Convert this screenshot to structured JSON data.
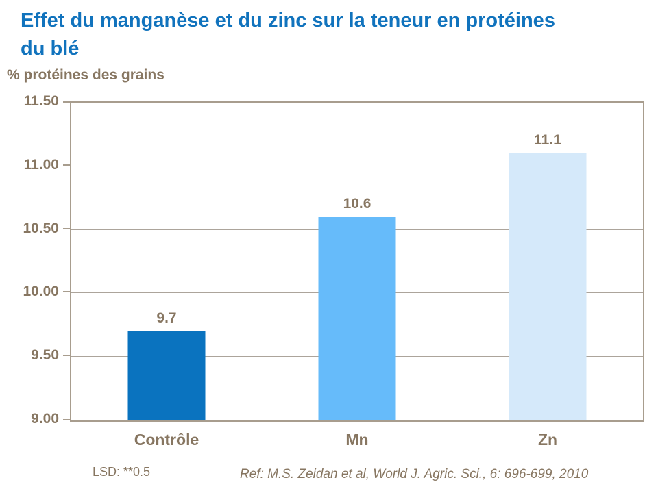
{
  "header": {
    "title_lines": [
      "Effet du manganèse et du zinc sur la teneur en protéines",
      "du blé"
    ],
    "axis_caption": "% protéines des grains"
  },
  "chart_data": {
    "type": "bar",
    "title": "Effet du manganèse et du zinc sur la teneur en protéines du blé",
    "ylabel": "% protéines des grains",
    "xlabel": "",
    "categories": [
      "Contrôle",
      "Mn",
      "Zn"
    ],
    "values": [
      9.7,
      10.6,
      11.1
    ],
    "value_labels": [
      "9.7",
      "10.6",
      "11.1"
    ],
    "bar_colors": [
      "#0A73BF",
      "#66BBFA",
      "#D5E9FA"
    ],
    "ylim": [
      9.0,
      11.5
    ],
    "ytick_interval": 0.5,
    "ytick_labels": [
      "11.50",
      "11.00",
      "10.50",
      "10.00",
      "9.50",
      "9.00"
    ],
    "grid": true,
    "legend": false
  },
  "footer": {
    "lsd_note": "LSD: **0.5",
    "reference": "Ref: M.S. Zeidan et al, World J. Agric. Sci., 6: 696-699, 2010"
  },
  "colors": {
    "title_text": "#1173BD",
    "body_text": "#877661",
    "plot_border": "#A89D8E",
    "gridline": "#ACA49B",
    "bar_controle": "#0A73BF",
    "bar_mn": "#66BBFA",
    "bar_zn": "#D5E9FA"
  }
}
